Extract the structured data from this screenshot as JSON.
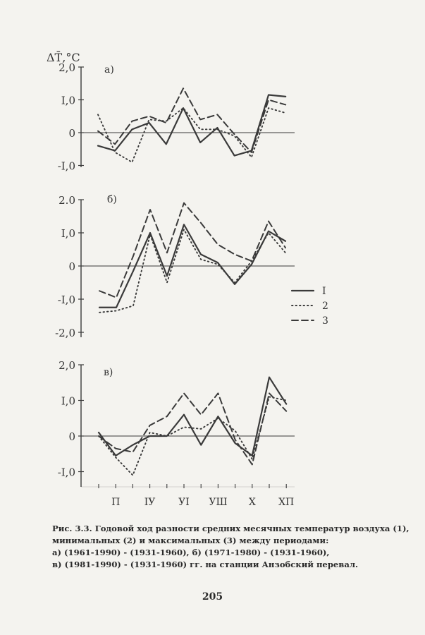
{
  "chart_data": [
    {
      "type": "line",
      "panel_label": "а)",
      "ylabel": "ΔT̄,°C",
      "ylim": [
        -1.0,
        2.0
      ],
      "yticks": [
        -1.0,
        0,
        1.0,
        2.0
      ],
      "ytick_labels": [
        "-I,0",
        "0",
        "I,0",
        "2,0"
      ],
      "x": [
        1,
        2,
        3,
        4,
        5,
        6,
        7,
        8,
        9,
        10,
        11,
        12
      ],
      "series": [
        {
          "name": "I",
          "style": "solid",
          "values": [
            -0.4,
            -0.55,
            0.1,
            0.3,
            -0.35,
            0.75,
            -0.3,
            0.15,
            -0.7,
            -0.55,
            1.15,
            1.1
          ]
        },
        {
          "name": "2",
          "style": "dotted",
          "values": [
            0.55,
            -0.6,
            -0.9,
            0.4,
            0.35,
            0.75,
            0.1,
            0.1,
            -0.1,
            -0.75,
            0.75,
            0.6
          ]
        },
        {
          "name": "3",
          "style": "dashed",
          "values": [
            0.05,
            -0.35,
            0.35,
            0.5,
            0.3,
            1.35,
            0.4,
            0.55,
            -0.05,
            -0.6,
            1.0,
            0.85
          ]
        }
      ]
    },
    {
      "type": "line",
      "panel_label": "б)",
      "ylim": [
        -2.0,
        2.0
      ],
      "yticks": [
        -2.0,
        -1.0,
        0,
        1.0,
        2.0
      ],
      "ytick_labels": [
        "-2,0",
        "-I,0",
        "0",
        "I,0",
        "2.0"
      ],
      "x": [
        1,
        2,
        3,
        4,
        5,
        6,
        7,
        8,
        9,
        10,
        11,
        12
      ],
      "series": [
        {
          "name": "I",
          "style": "solid",
          "values": [
            -1.25,
            -1.25,
            -0.15,
            1.0,
            -0.3,
            1.25,
            0.35,
            0.1,
            -0.55,
            0.05,
            1.05,
            0.75
          ]
        },
        {
          "name": "2",
          "style": "dotted",
          "values": [
            -1.4,
            -1.35,
            -1.2,
            0.95,
            -0.5,
            1.1,
            0.2,
            0.05,
            -0.5,
            0.15,
            1.0,
            0.4
          ]
        },
        {
          "name": "3",
          "style": "dashed",
          "values": [
            -0.75,
            -0.95,
            0.3,
            1.7,
            0.4,
            1.9,
            1.3,
            0.65,
            0.35,
            0.15,
            1.35,
            0.55
          ]
        }
      ]
    },
    {
      "type": "line",
      "panel_label": "в)",
      "ylim": [
        -1.5,
        2.0
      ],
      "yticks": [
        -1.0,
        0,
        1.0,
        2.0
      ],
      "ytick_labels": [
        "-I,0",
        "0",
        "I,0",
        "2,0"
      ],
      "categories": [
        "П",
        "IУ",
        "УI",
        "УШ",
        "Х",
        "ХП"
      ],
      "x": [
        1,
        2,
        3,
        4,
        5,
        6,
        7,
        8,
        9,
        10,
        11,
        12
      ],
      "series": [
        {
          "name": "I",
          "style": "solid",
          "values": [
            0.1,
            -0.55,
            -0.25,
            0.0,
            0.0,
            0.6,
            -0.25,
            0.55,
            -0.2,
            -0.55,
            1.65,
            0.9
          ]
        },
        {
          "name": "2",
          "style": "dotted",
          "values": [
            0.0,
            -0.6,
            -1.1,
            0.1,
            0.0,
            0.25,
            0.2,
            0.5,
            0.15,
            -0.65,
            1.1,
            1.0
          ]
        },
        {
          "name": "3",
          "style": "dashed",
          "values": [
            0.0,
            -0.35,
            -0.45,
            0.3,
            0.55,
            1.2,
            0.6,
            1.2,
            -0.1,
            -0.8,
            1.2,
            0.7
          ]
        }
      ]
    }
  ],
  "legend": {
    "placement": "right of middle panel",
    "entries": [
      {
        "label": "I",
        "style": "solid"
      },
      {
        "label": "2",
        "style": "dotted"
      },
      {
        "label": "3",
        "style": "dashed"
      }
    ]
  },
  "colors": {
    "ink": "#3a3a3a",
    "paper": "#f4f3ef"
  },
  "caption": {
    "line1": "Рис. 3.3. Годовой ход разности средних месячных температур воздуха (1),",
    "line2": "минимальных (2) и максимальных (3) между периодами:",
    "line3": "а) (1961-1990) - (1931-1960), б) (1971-1980) - (1931-1960),",
    "line4": "в) (1981-1990) - (1931-1960) гг. на станции Анзобский перевал."
  },
  "page_number": "205"
}
